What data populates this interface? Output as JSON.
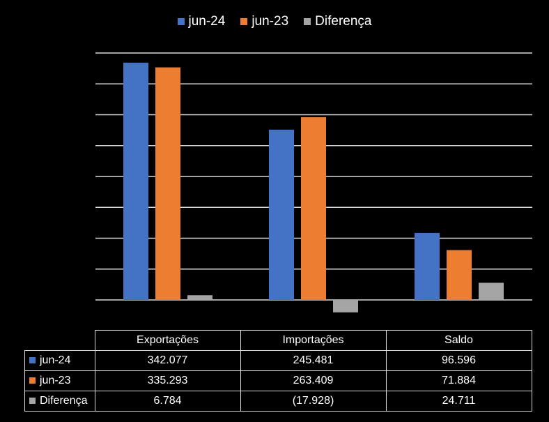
{
  "chart_data": {
    "type": "bar",
    "categories": [
      "Exportações",
      "Importações",
      "Saldo"
    ],
    "series": [
      {
        "name": "jun-24",
        "color": "#4472C4",
        "values": [
          342077,
          245481,
          96596
        ],
        "labels": [
          "342.077",
          "245.481",
          "96.596"
        ]
      },
      {
        "name": "jun-23",
        "color": "#ED7D31",
        "values": [
          335293,
          263409,
          71884
        ],
        "labels": [
          "335.293",
          "263.409",
          "71.884"
        ]
      },
      {
        "name": "Diferença",
        "color": "#A5A5A5",
        "values": [
          6784,
          -17928,
          24711
        ],
        "labels": [
          "6.784",
          "(17.928)",
          "24.711"
        ]
      }
    ],
    "ylim": [
      -20000,
      400000
    ],
    "grid": true,
    "legend": "top"
  }
}
